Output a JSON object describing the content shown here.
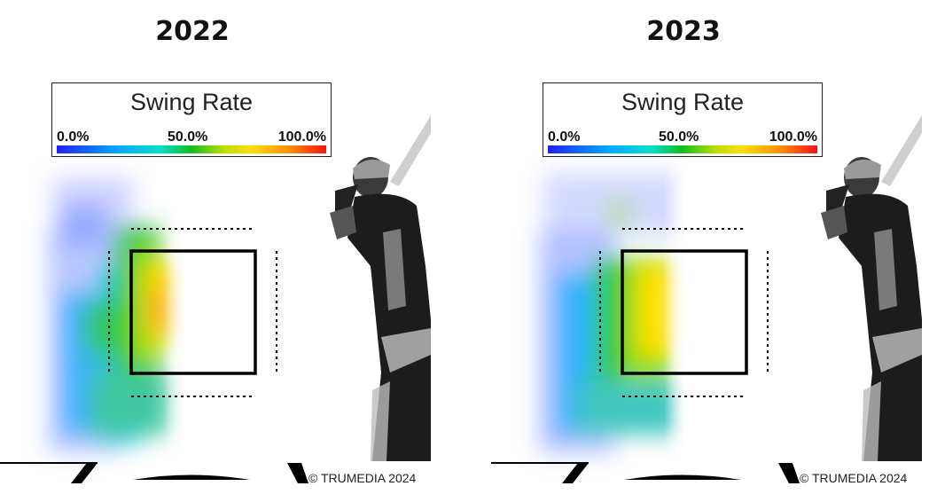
{
  "chart_data": [
    {
      "type": "heatmap",
      "title": "2022",
      "legend": {
        "title": "Swing Rate",
        "ticks": [
          "0.0%",
          "50.0%",
          "100.0%"
        ],
        "colors": [
          "#2020ff",
          "#00a8ff",
          "#00e0d0",
          "#10c020",
          "#b8e000",
          "#ffe000",
          "#ff9000",
          "#ff1010"
        ]
      },
      "hot_zone": "upper-left and middle of the zone",
      "copyright": "© TRUMEDIA 2024"
    },
    {
      "type": "heatmap",
      "title": "2023",
      "legend": {
        "title": "Swing Rate",
        "ticks": [
          "0.0%",
          "50.0%",
          "100.0%"
        ],
        "colors": [
          "#2020ff",
          "#00a8ff",
          "#00e0d0",
          "#10c020",
          "#b8e000",
          "#ffe000",
          "#ff9000",
          "#ff1010"
        ]
      },
      "hot_zone": "middle of the zone",
      "copyright": "© TRUMEDIA 2024"
    }
  ]
}
